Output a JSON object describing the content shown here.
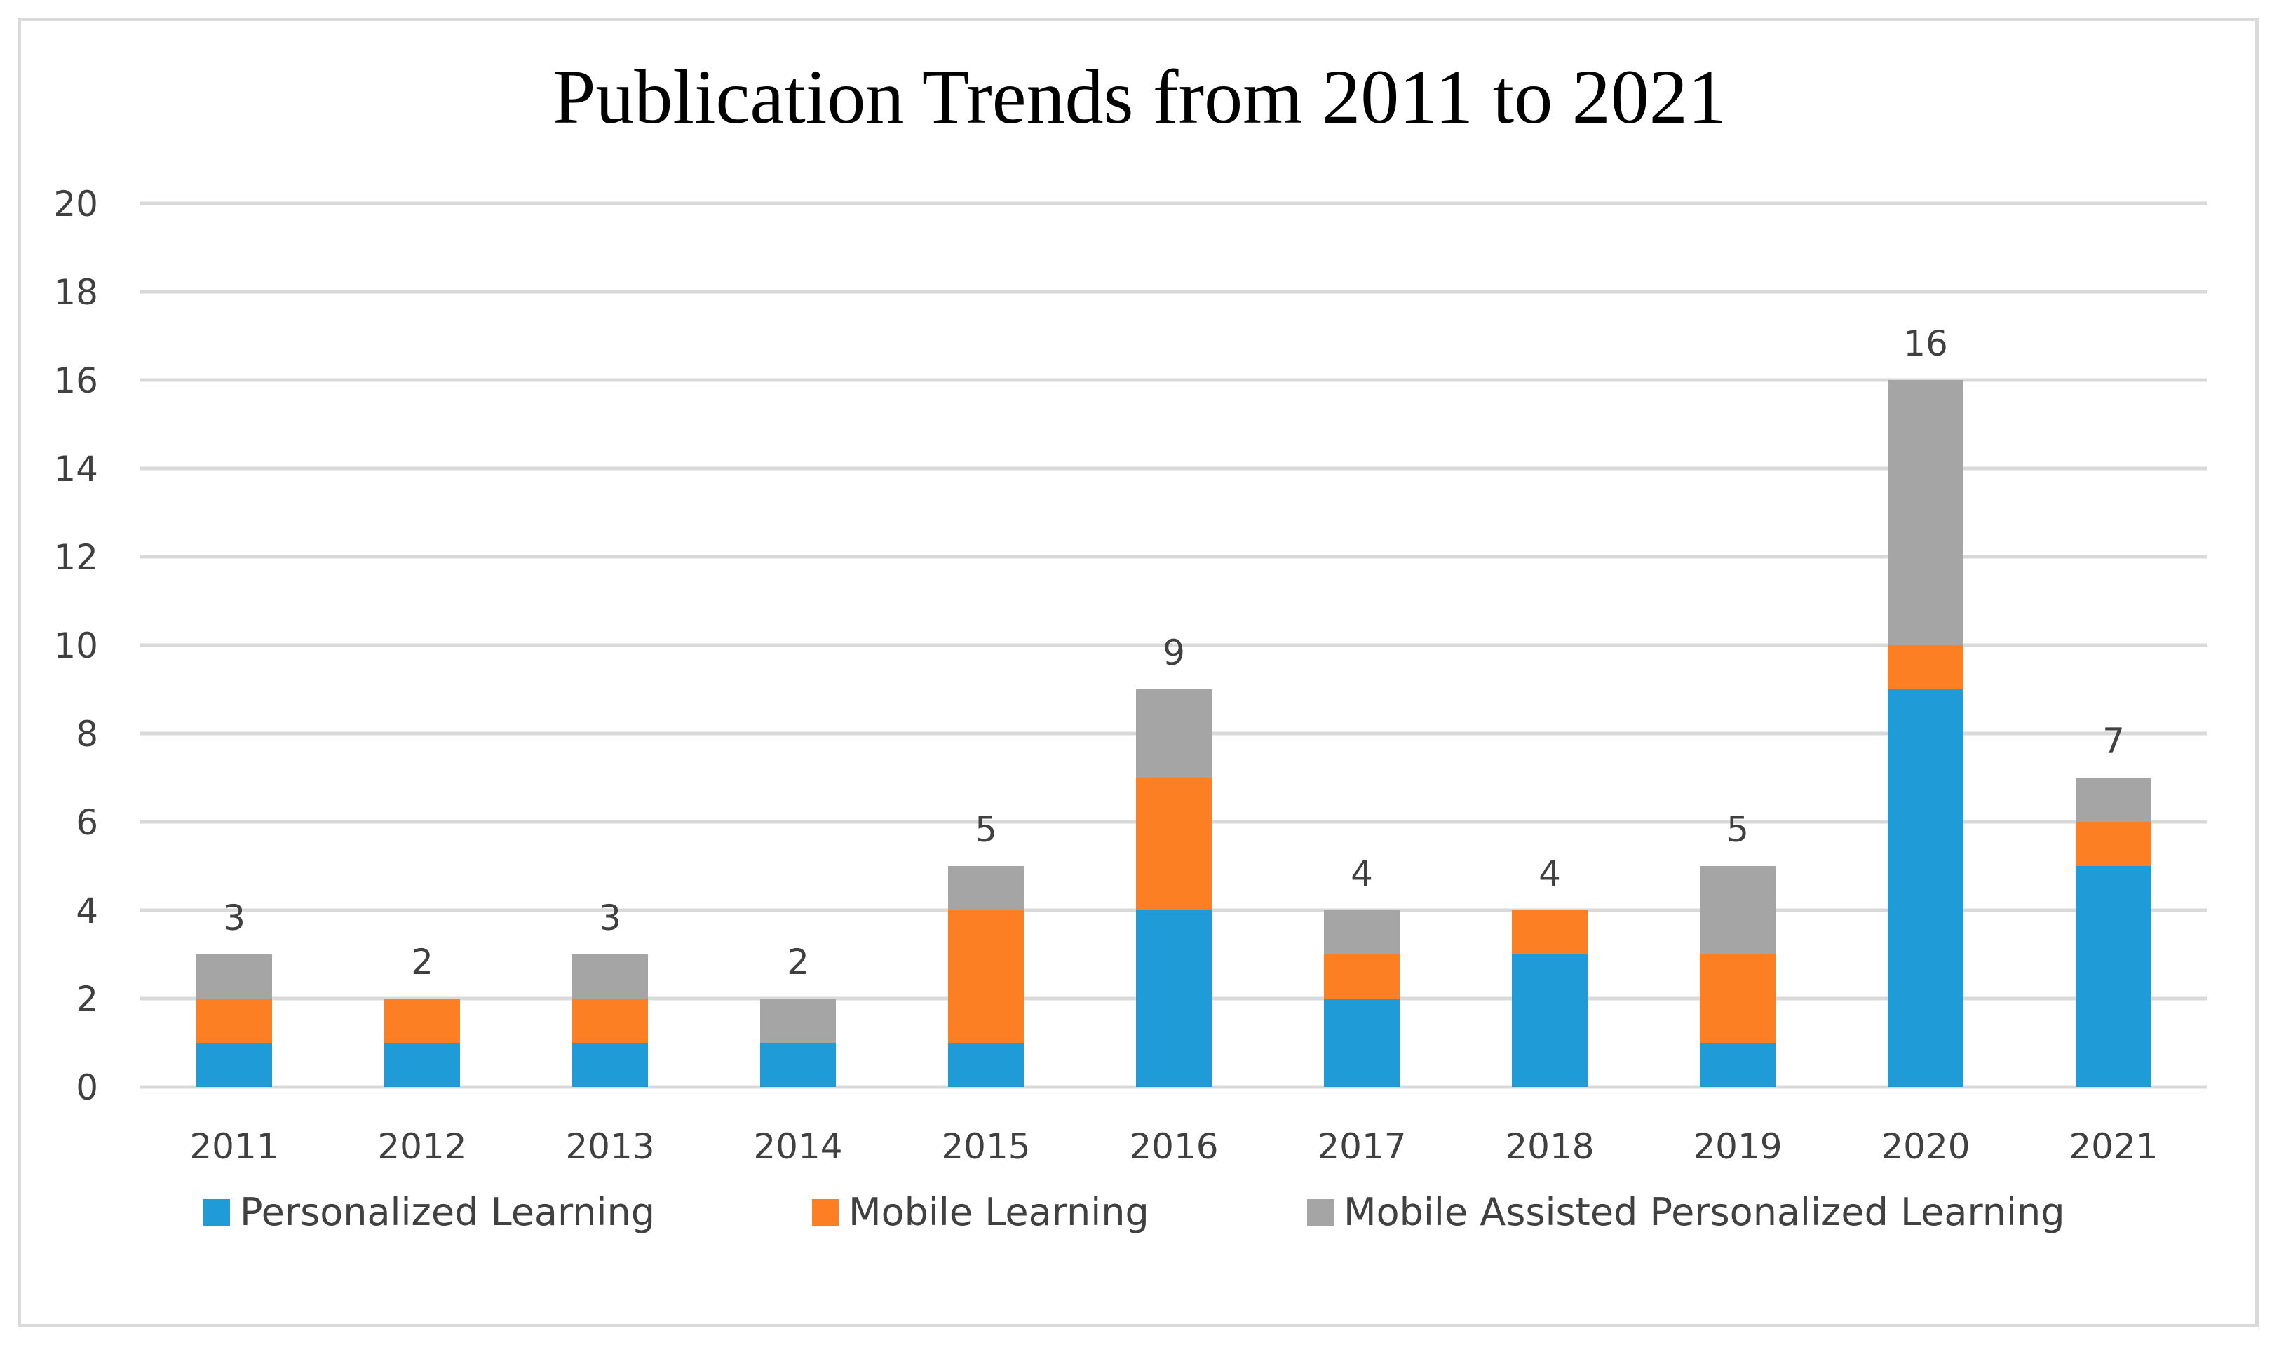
{
  "chart_data": {
    "type": "bar",
    "stacked": true,
    "title": "Publication Trends from 2011 to 2021",
    "xlabel": "",
    "ylabel": "",
    "ylim": [
      0,
      20
    ],
    "yticks": [
      0,
      2,
      4,
      6,
      8,
      10,
      12,
      14,
      16,
      18,
      20
    ],
    "grid": true,
    "legend_position": "bottom",
    "categories": [
      "2011",
      "2012",
      "2013",
      "2014",
      "2015",
      "2016",
      "2017",
      "2018",
      "2019",
      "2020",
      "2021"
    ],
    "series": [
      {
        "name": "Personalized Learning",
        "color": "#1f9bd7",
        "values": [
          1,
          1,
          1,
          1,
          1,
          4,
          2,
          3,
          1,
          9,
          5
        ]
      },
      {
        "name": "Mobile Learning",
        "color": "#fd7f24",
        "values": [
          1,
          1,
          1,
          0,
          3,
          3,
          1,
          1,
          2,
          1,
          1
        ]
      },
      {
        "name": "Mobile Assisted Personalized Learning",
        "color": "#a5a5a5",
        "values": [
          1,
          0,
          1,
          1,
          1,
          2,
          1,
          0,
          2,
          6,
          1
        ]
      }
    ],
    "totals": [
      3,
      2,
      3,
      2,
      5,
      9,
      4,
      4,
      5,
      16,
      7
    ]
  }
}
